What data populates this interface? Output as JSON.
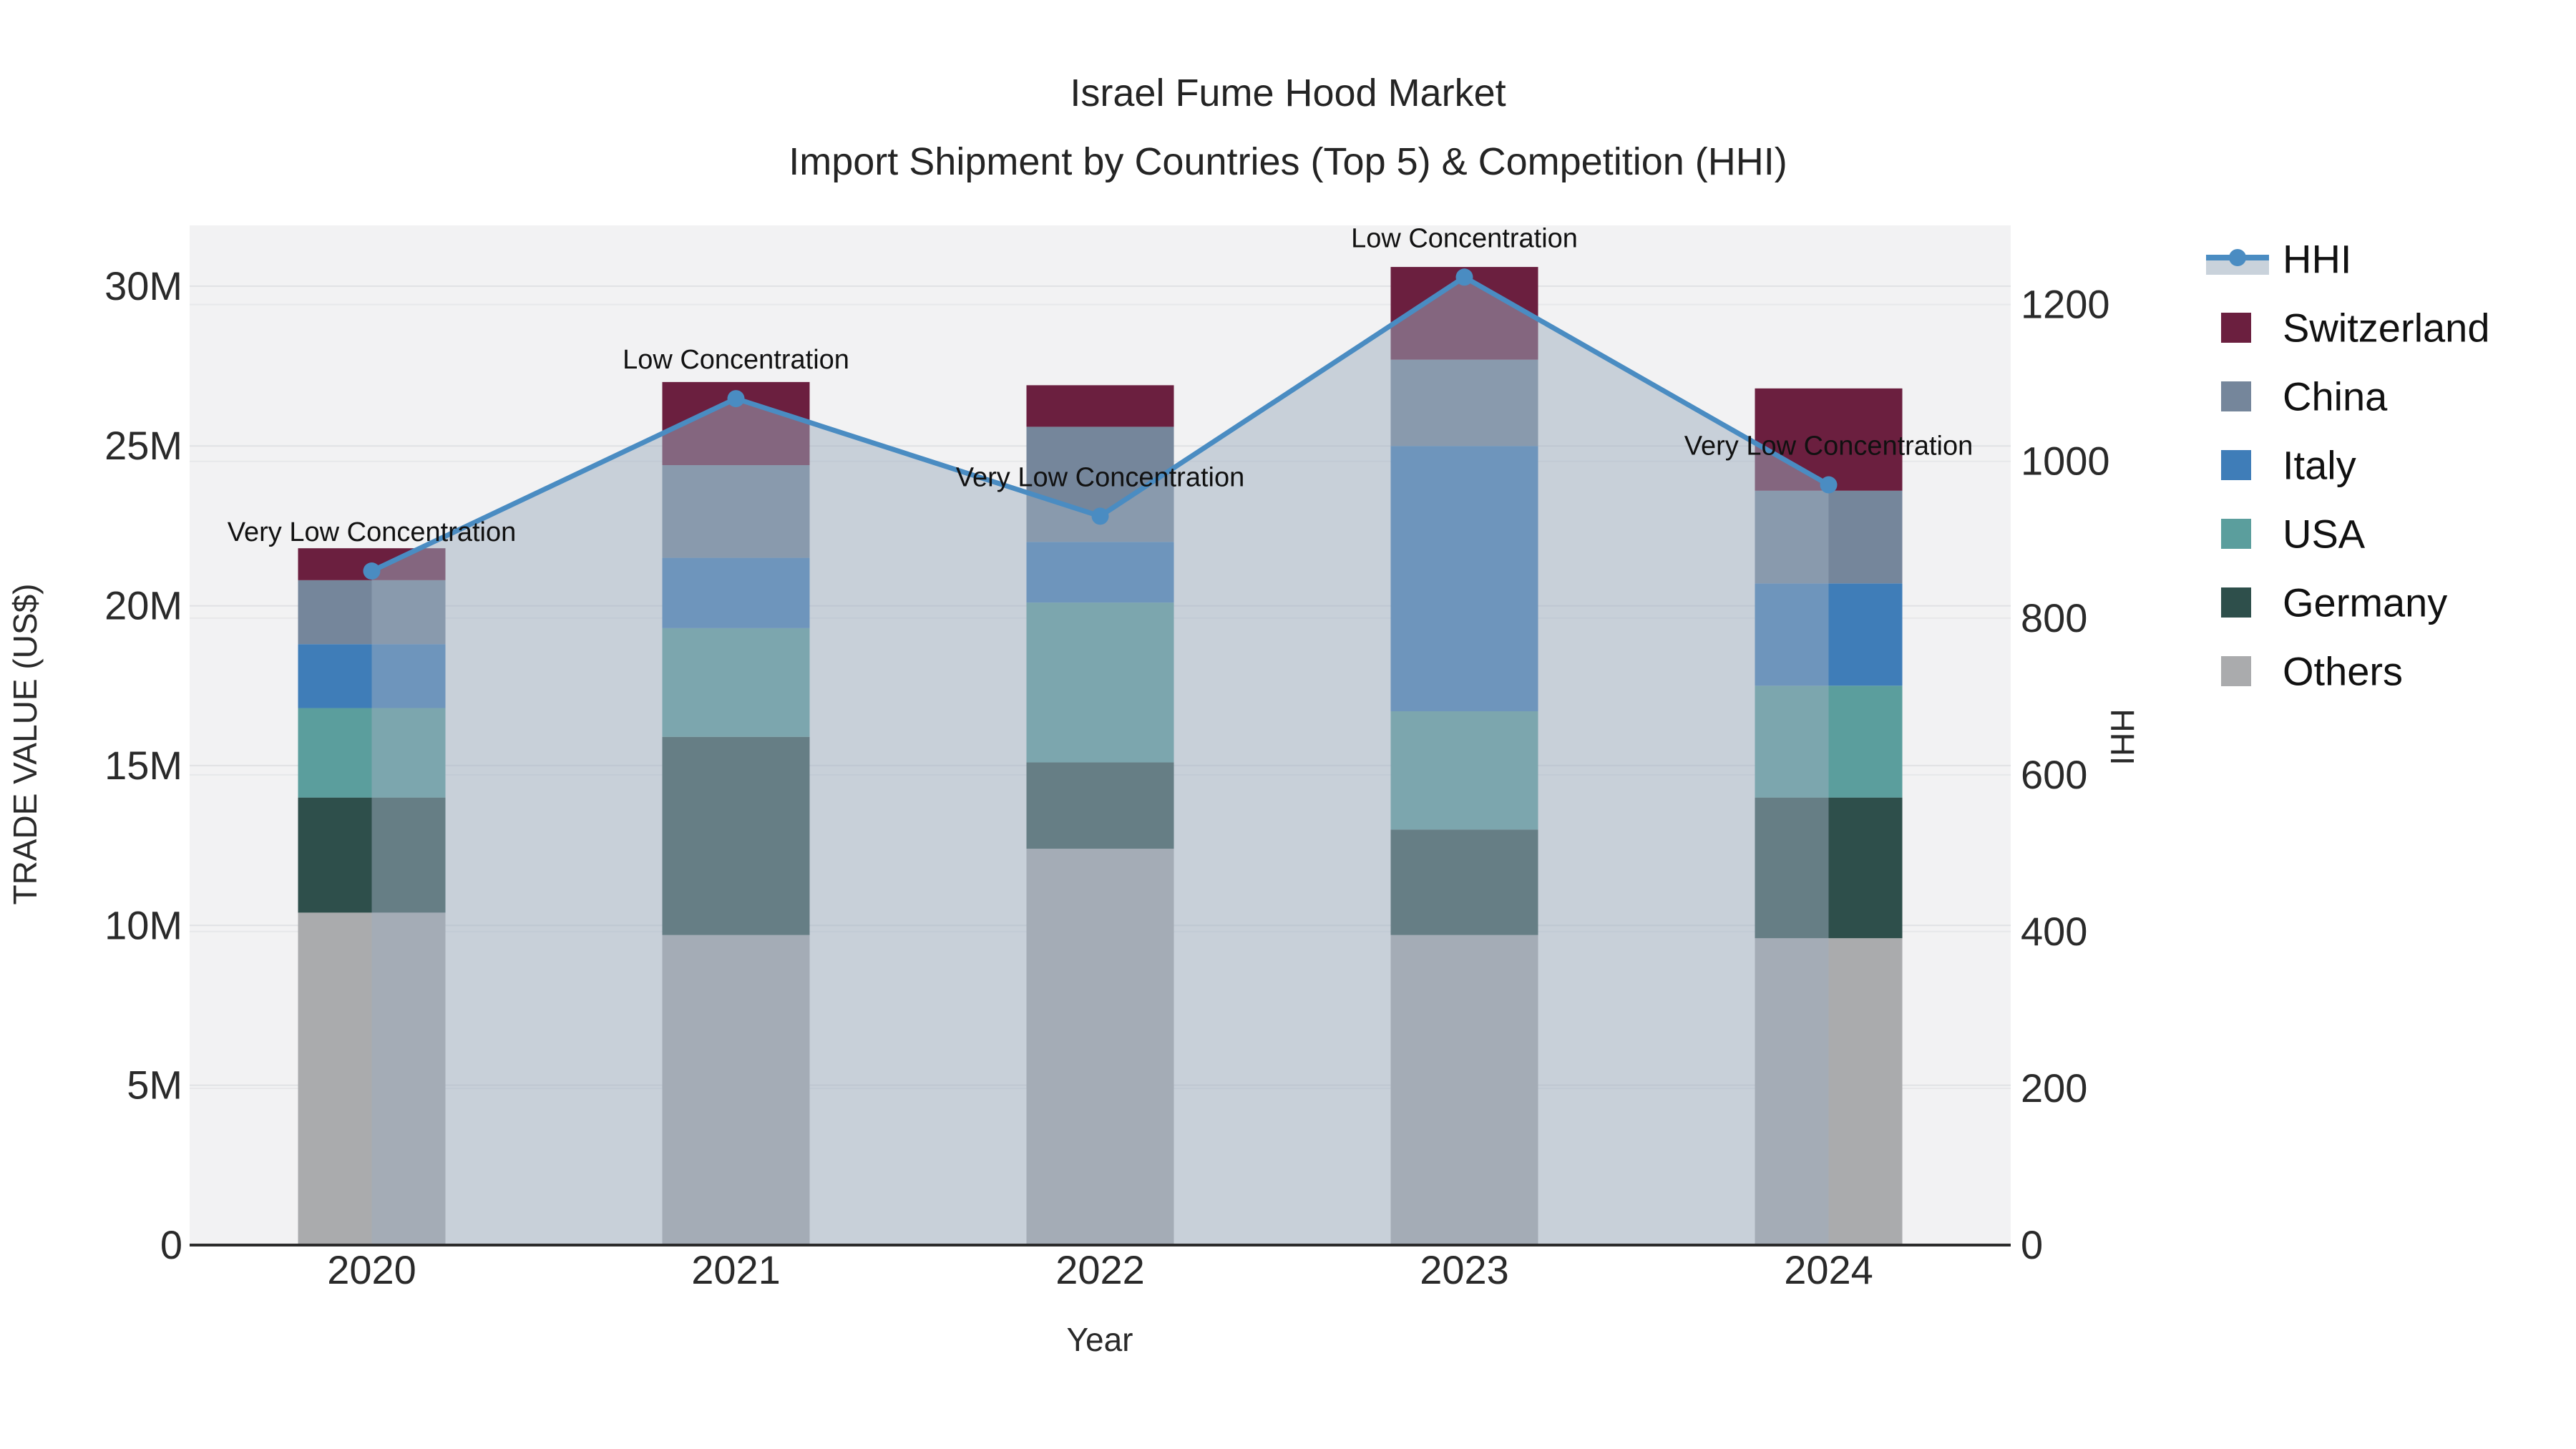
{
  "title": {
    "line1": "Israel Fume Hood Market",
    "line2": "Import Shipment by Countries (Top 5) & Competition (HHI)"
  },
  "axes": {
    "x_title": "Year",
    "y_left_title": "TRADE VALUE (US$)",
    "y_right_title": "HHI"
  },
  "legend": {
    "items": [
      {
        "label": "HHI",
        "type": "line",
        "color": "#4a8cc2",
        "band_color": "#c9d2db"
      },
      {
        "label": "Switzerland",
        "type": "square",
        "color": "#6b1f3f"
      },
      {
        "label": "China",
        "type": "square",
        "color": "#75869b"
      },
      {
        "label": "Italy",
        "type": "square",
        "color": "#3f7db8"
      },
      {
        "label": "USA",
        "type": "square",
        "color": "#5b9e9d"
      },
      {
        "label": "Germany",
        "type": "square",
        "color": "#2e4f4b"
      },
      {
        "label": "Others",
        "type": "square",
        "color": "#aaabad"
      }
    ]
  },
  "chart_data": {
    "type": "bar",
    "stacked": true,
    "title": "Israel Fume Hood Market — Import Shipment by Countries (Top 5) & Competition (HHI)",
    "categories": [
      "2020",
      "2021",
      "2022",
      "2023",
      "2024"
    ],
    "value_unit": "million US$",
    "series": [
      {
        "name": "Others",
        "color": "#aaabad",
        "values": [
          10.4,
          9.7,
          12.4,
          9.7,
          9.6
        ]
      },
      {
        "name": "Germany",
        "color": "#2e4f4b",
        "values": [
          3.6,
          6.2,
          2.7,
          3.3,
          4.4
        ]
      },
      {
        "name": "USA",
        "color": "#5b9e9d",
        "values": [
          2.8,
          3.4,
          5.0,
          3.7,
          3.5
        ]
      },
      {
        "name": "Italy",
        "color": "#3f7db8",
        "values": [
          2.0,
          2.2,
          1.9,
          8.3,
          3.2
        ]
      },
      {
        "name": "China",
        "color": "#75869b",
        "values": [
          2.0,
          2.9,
          3.6,
          2.7,
          2.9
        ]
      },
      {
        "name": "Switzerland",
        "color": "#6b1f3f",
        "values": [
          1.0,
          2.6,
          1.3,
          2.9,
          3.2
        ]
      }
    ],
    "bar_totals": [
      21.8,
      27.0,
      26.9,
      30.6,
      26.8
    ],
    "line_series": {
      "name": "HHI",
      "axis": "right",
      "color": "#4a8cc2",
      "area_fill": "rgba(158,173,192,0.5)",
      "values": [
        860,
        1080,
        930,
        1235,
        970
      ]
    },
    "annotations": [
      {
        "category": "2020",
        "text": "Very Low Concentration"
      },
      {
        "category": "2021",
        "text": "Low Concentration"
      },
      {
        "category": "2022",
        "text": "Very Low Concentration"
      },
      {
        "category": "2023",
        "text": "Low Concentration"
      },
      {
        "category": "2024",
        "text": "Very Low Concentration"
      }
    ],
    "xlabel": "Year",
    "ylabel": "TRADE VALUE (US$)",
    "y2label": "HHI",
    "ylim": [
      0,
      31.9
    ],
    "y2lim": [
      0,
      1301
    ],
    "y_ticks": [
      {
        "v": 0,
        "label": "0"
      },
      {
        "v": 5,
        "label": "5M"
      },
      {
        "v": 10,
        "label": "10M"
      },
      {
        "v": 15,
        "label": "15M"
      },
      {
        "v": 20,
        "label": "20M"
      },
      {
        "v": 25,
        "label": "25M"
      },
      {
        "v": 30,
        "label": "30M"
      }
    ],
    "y2_ticks": [
      {
        "v": 0,
        "label": "0"
      },
      {
        "v": 200,
        "label": "200"
      },
      {
        "v": 400,
        "label": "400"
      },
      {
        "v": 600,
        "label": "600"
      },
      {
        "v": 800,
        "label": "800"
      },
      {
        "v": 1000,
        "label": "1000"
      },
      {
        "v": 1200,
        "label": "1200"
      }
    ],
    "grid": true,
    "legend_position": "right"
  },
  "style": {
    "plot_bg": "#f2f2f3",
    "grid_left_color": "#e0e1e4",
    "grid_right_color": "#e7e8ea",
    "axis_line_color": "#2b2b2b",
    "tick_color": "#2a2a2a",
    "annotation_color": "#111111"
  }
}
